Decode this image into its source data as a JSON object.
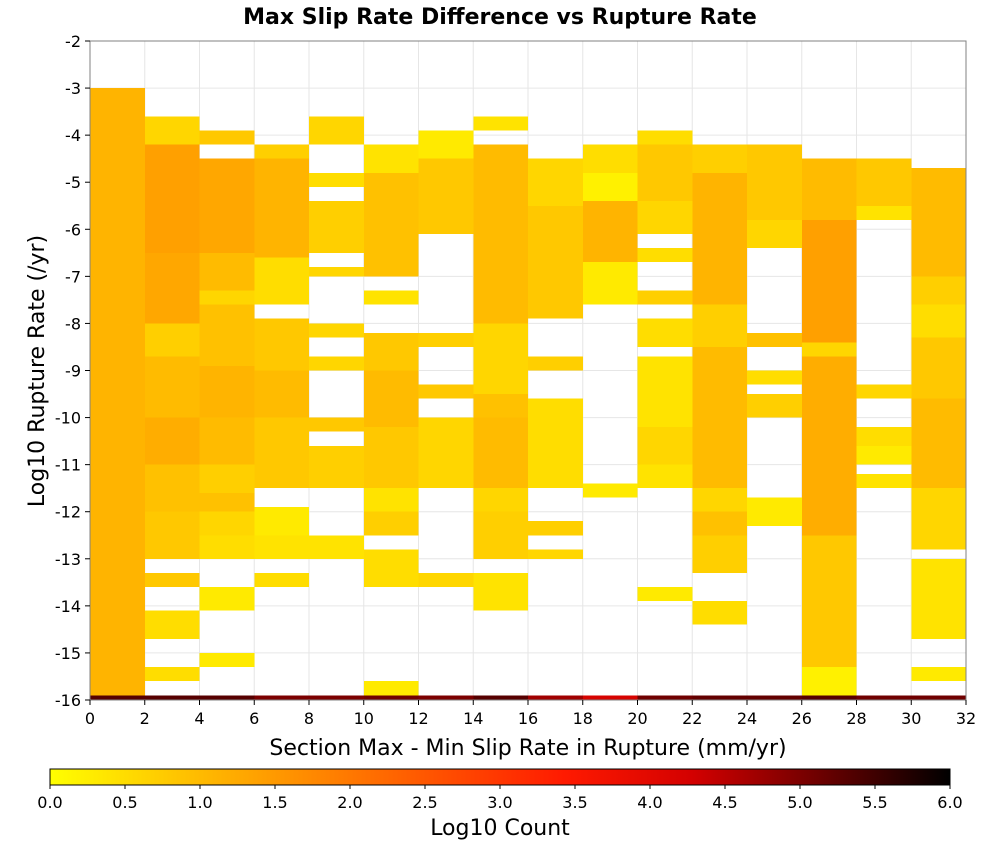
{
  "chart_data": {
    "type": "heatmap",
    "title": "Max Slip Rate Difference vs Rupture Rate",
    "xlabel": "Section Max - Min Slip Rate in Rupture (mm/yr)",
    "ylabel": "Log10 Rupture Rate (/yr)",
    "xlim": [
      0,
      32
    ],
    "ylim": [
      -16,
      -2
    ],
    "x_ticks": [
      "0",
      "2",
      "4",
      "6",
      "8",
      "10",
      "12",
      "14",
      "16",
      "18",
      "20",
      "22",
      "24",
      "26",
      "28",
      "30",
      "32"
    ],
    "y_ticks": [
      "-2",
      "-3",
      "-4",
      "-5",
      "-6",
      "-7",
      "-8",
      "-9",
      "-10",
      "-11",
      "-12",
      "-13",
      "-14",
      "-15",
      "-16"
    ],
    "bin_width_x": 2,
    "bin_height_y": 0.28,
    "colorbar": {
      "label": "Log10 Count",
      "range": [
        0,
        6
      ],
      "ticks": [
        "0.0",
        "0.5",
        "1.0",
        "1.5",
        "2.0",
        "2.5",
        "3.0",
        "3.5",
        "4.0",
        "4.5",
        "5.0",
        "5.5",
        "6.0"
      ],
      "colors": [
        "#ffff00",
        "#ffc400",
        "#ff8b00",
        "#ff5200",
        "#ff1a00",
        "#d30000",
        "#6b0000",
        "#000000"
      ]
    },
    "grid": true,
    "columns": [
      {
        "x": [
          0,
          2
        ],
        "bins": [
          [
            -3.0,
            -15.9,
            1.1
          ],
          [
            -15.9,
            -16.0,
            5.3
          ]
        ]
      },
      {
        "x": [
          2,
          4
        ],
        "bins": [
          [
            -3.6,
            -4.2,
            0.6
          ],
          [
            -4.2,
            -6.5,
            1.4
          ],
          [
            -6.5,
            -8.0,
            1.3
          ],
          [
            -8.0,
            -8.7,
            0.7
          ],
          [
            -8.7,
            -10.0,
            1.0
          ],
          [
            -10.0,
            -11.0,
            1.2
          ],
          [
            -11.0,
            -12.0,
            0.9
          ],
          [
            -12.0,
            -13.0,
            0.8
          ],
          [
            -13.3,
            -13.6,
            0.8
          ],
          [
            -14.1,
            -14.7,
            0.5
          ],
          [
            -15.3,
            -15.6,
            0.5
          ],
          [
            -15.9,
            -16.0,
            5.3
          ]
        ]
      },
      {
        "x": [
          4,
          6
        ],
        "bins": [
          [
            -3.9,
            -4.2,
            0.8
          ],
          [
            -4.5,
            -6.5,
            1.3
          ],
          [
            -6.5,
            -7.3,
            1.0
          ],
          [
            -7.3,
            -7.6,
            0.6
          ],
          [
            -7.6,
            -8.9,
            0.9
          ],
          [
            -8.9,
            -10.0,
            1.1
          ],
          [
            -10.0,
            -11.0,
            1.0
          ],
          [
            -11.0,
            -11.6,
            0.7
          ],
          [
            -11.6,
            -12.0,
            0.9
          ],
          [
            -12.0,
            -12.5,
            0.6
          ],
          [
            -12.5,
            -13.0,
            0.5
          ],
          [
            -13.6,
            -14.1,
            0.3
          ],
          [
            -15.0,
            -15.3,
            0.3
          ],
          [
            -15.9,
            -16.0,
            5.3
          ]
        ]
      },
      {
        "x": [
          6,
          8
        ],
        "bins": [
          [
            -4.2,
            -4.5,
            0.7
          ],
          [
            -4.5,
            -6.6,
            1.1
          ],
          [
            -6.6,
            -7.6,
            0.5
          ],
          [
            -7.9,
            -9.0,
            0.8
          ],
          [
            -9.0,
            -10.0,
            1.0
          ],
          [
            -10.0,
            -11.5,
            0.8
          ],
          [
            -11.9,
            -12.5,
            0.3
          ],
          [
            -12.5,
            -13.0,
            0.4
          ],
          [
            -13.3,
            -13.6,
            0.5
          ],
          [
            -15.9,
            -16.0,
            5.0
          ]
        ]
      },
      {
        "x": [
          8,
          10
        ],
        "bins": [
          [
            -3.6,
            -4.2,
            0.6
          ],
          [
            -4.8,
            -5.1,
            0.5
          ],
          [
            -5.4,
            -6.5,
            0.7
          ],
          [
            -6.8,
            -7.0,
            0.6
          ],
          [
            -8.0,
            -8.3,
            0.6
          ],
          [
            -8.7,
            -9.0,
            0.6
          ],
          [
            -10.0,
            -10.3,
            0.8
          ],
          [
            -10.6,
            -11.5,
            0.7
          ],
          [
            -12.5,
            -13.0,
            0.4
          ],
          [
            -15.9,
            -16.0,
            5.0
          ]
        ]
      },
      {
        "x": [
          10,
          12
        ],
        "bins": [
          [
            -4.2,
            -4.8,
            0.4
          ],
          [
            -4.8,
            -5.4,
            0.9
          ],
          [
            -5.4,
            -7.0,
            0.9
          ],
          [
            -7.3,
            -7.6,
            0.4
          ],
          [
            -8.2,
            -9.0,
            0.8
          ],
          [
            -9.0,
            -10.2,
            1.0
          ],
          [
            -10.2,
            -11.5,
            0.8
          ],
          [
            -11.5,
            -12.0,
            0.4
          ],
          [
            -12.0,
            -12.5,
            0.7
          ],
          [
            -12.8,
            -13.6,
            0.5
          ],
          [
            -15.6,
            -15.9,
            0.3
          ],
          [
            -15.9,
            -16.0,
            5.1
          ]
        ]
      },
      {
        "x": [
          12,
          14
        ],
        "bins": [
          [
            -3.9,
            -4.5,
            0.3
          ],
          [
            -4.5,
            -6.1,
            0.8
          ],
          [
            -8.2,
            -8.5,
            0.7
          ],
          [
            -9.3,
            -9.6,
            0.8
          ],
          [
            -10.0,
            -11.5,
            0.6
          ],
          [
            -13.3,
            -13.6,
            0.6
          ],
          [
            -15.9,
            -16.0,
            5.0
          ]
        ]
      },
      {
        "x": [
          14,
          16
        ],
        "bins": [
          [
            -3.6,
            -3.9,
            0.4
          ],
          [
            -4.2,
            -8.0,
            1.0
          ],
          [
            -8.0,
            -9.5,
            0.6
          ],
          [
            -9.5,
            -10.0,
            0.9
          ],
          [
            -10.0,
            -11.5,
            1.0
          ],
          [
            -11.5,
            -12.0,
            0.6
          ],
          [
            -12.0,
            -13.0,
            0.7
          ],
          [
            -13.3,
            -14.1,
            0.4
          ],
          [
            -15.9,
            -16.0,
            5.3
          ]
        ]
      },
      {
        "x": [
          16,
          18
        ],
        "bins": [
          [
            -4.5,
            -5.5,
            0.6
          ],
          [
            -5.5,
            -7.9,
            0.8
          ],
          [
            -8.7,
            -9.0,
            0.7
          ],
          [
            -9.6,
            -11.5,
            0.5
          ],
          [
            -12.2,
            -12.5,
            0.7
          ],
          [
            -12.8,
            -13.0,
            0.6
          ],
          [
            -15.9,
            -16.0,
            4.7
          ]
        ]
      },
      {
        "x": [
          18,
          20
        ],
        "bins": [
          [
            -4.2,
            -4.8,
            0.5
          ],
          [
            -4.8,
            -5.4,
            0.2
          ],
          [
            -5.4,
            -6.7,
            1.1
          ],
          [
            -6.7,
            -7.6,
            0.3
          ],
          [
            -11.4,
            -11.7,
            0.3
          ],
          [
            -15.9,
            -16.0,
            4.2
          ]
        ]
      },
      {
        "x": [
          20,
          22
        ],
        "bins": [
          [
            -3.9,
            -4.2,
            0.5
          ],
          [
            -4.2,
            -5.4,
            0.8
          ],
          [
            -5.4,
            -6.1,
            0.6
          ],
          [
            -6.4,
            -6.7,
            0.5
          ],
          [
            -7.3,
            -7.6,
            0.7
          ],
          [
            -7.9,
            -8.5,
            0.5
          ],
          [
            -8.7,
            -10.2,
            0.4
          ],
          [
            -10.2,
            -11.0,
            0.6
          ],
          [
            -11.0,
            -11.5,
            0.4
          ],
          [
            -13.6,
            -13.9,
            0.3
          ],
          [
            -15.9,
            -16.0,
            5.1
          ]
        ]
      },
      {
        "x": [
          22,
          24
        ],
        "bins": [
          [
            -4.2,
            -4.8,
            0.7
          ],
          [
            -4.8,
            -7.6,
            1.1
          ],
          [
            -7.6,
            -8.5,
            0.7
          ],
          [
            -8.5,
            -11.5,
            1.0
          ],
          [
            -11.5,
            -12.0,
            0.6
          ],
          [
            -12.0,
            -12.5,
            0.9
          ],
          [
            -12.5,
            -13.3,
            0.7
          ],
          [
            -13.9,
            -14.4,
            0.5
          ],
          [
            -15.9,
            -16.0,
            5.2
          ]
        ]
      },
      {
        "x": [
          24,
          26
        ],
        "bins": [
          [
            -4.2,
            -5.8,
            0.8
          ],
          [
            -5.8,
            -6.4,
            0.6
          ],
          [
            -8.2,
            -8.5,
            0.9
          ],
          [
            -9.0,
            -9.3,
            0.5
          ],
          [
            -9.5,
            -10.0,
            0.7
          ],
          [
            -11.7,
            -12.3,
            0.3
          ],
          [
            -15.9,
            -16.0,
            5.2
          ]
        ]
      },
      {
        "x": [
          26,
          28
        ],
        "bins": [
          [
            -4.5,
            -5.8,
            1.0
          ],
          [
            -5.8,
            -8.4,
            1.4
          ],
          [
            -8.4,
            -8.7,
            0.6
          ],
          [
            -8.7,
            -12.5,
            1.2
          ],
          [
            -12.5,
            -15.3,
            0.8
          ],
          [
            -15.3,
            -15.9,
            0.2
          ],
          [
            -15.9,
            -16.0,
            5.3
          ]
        ]
      },
      {
        "x": [
          28,
          30
        ],
        "bins": [
          [
            -4.5,
            -5.5,
            0.8
          ],
          [
            -5.5,
            -5.8,
            0.4
          ],
          [
            -9.3,
            -9.6,
            0.6
          ],
          [
            -10.2,
            -10.6,
            0.5
          ],
          [
            -10.6,
            -11.0,
            0.3
          ],
          [
            -11.2,
            -11.5,
            0.4
          ],
          [
            -15.9,
            -16.0,
            5.1
          ]
        ]
      },
      {
        "x": [
          30,
          32
        ],
        "bins": [
          [
            -4.7,
            -7.0,
            1.0
          ],
          [
            -7.0,
            -7.6,
            0.7
          ],
          [
            -7.6,
            -8.3,
            0.5
          ],
          [
            -8.3,
            -9.6,
            0.8
          ],
          [
            -9.6,
            -11.5,
            1.0
          ],
          [
            -11.5,
            -12.8,
            0.6
          ],
          [
            -13.0,
            -14.7,
            0.4
          ],
          [
            -15.3,
            -15.6,
            0.3
          ],
          [
            -15.9,
            -16.0,
            5.1
          ]
        ]
      }
    ]
  }
}
